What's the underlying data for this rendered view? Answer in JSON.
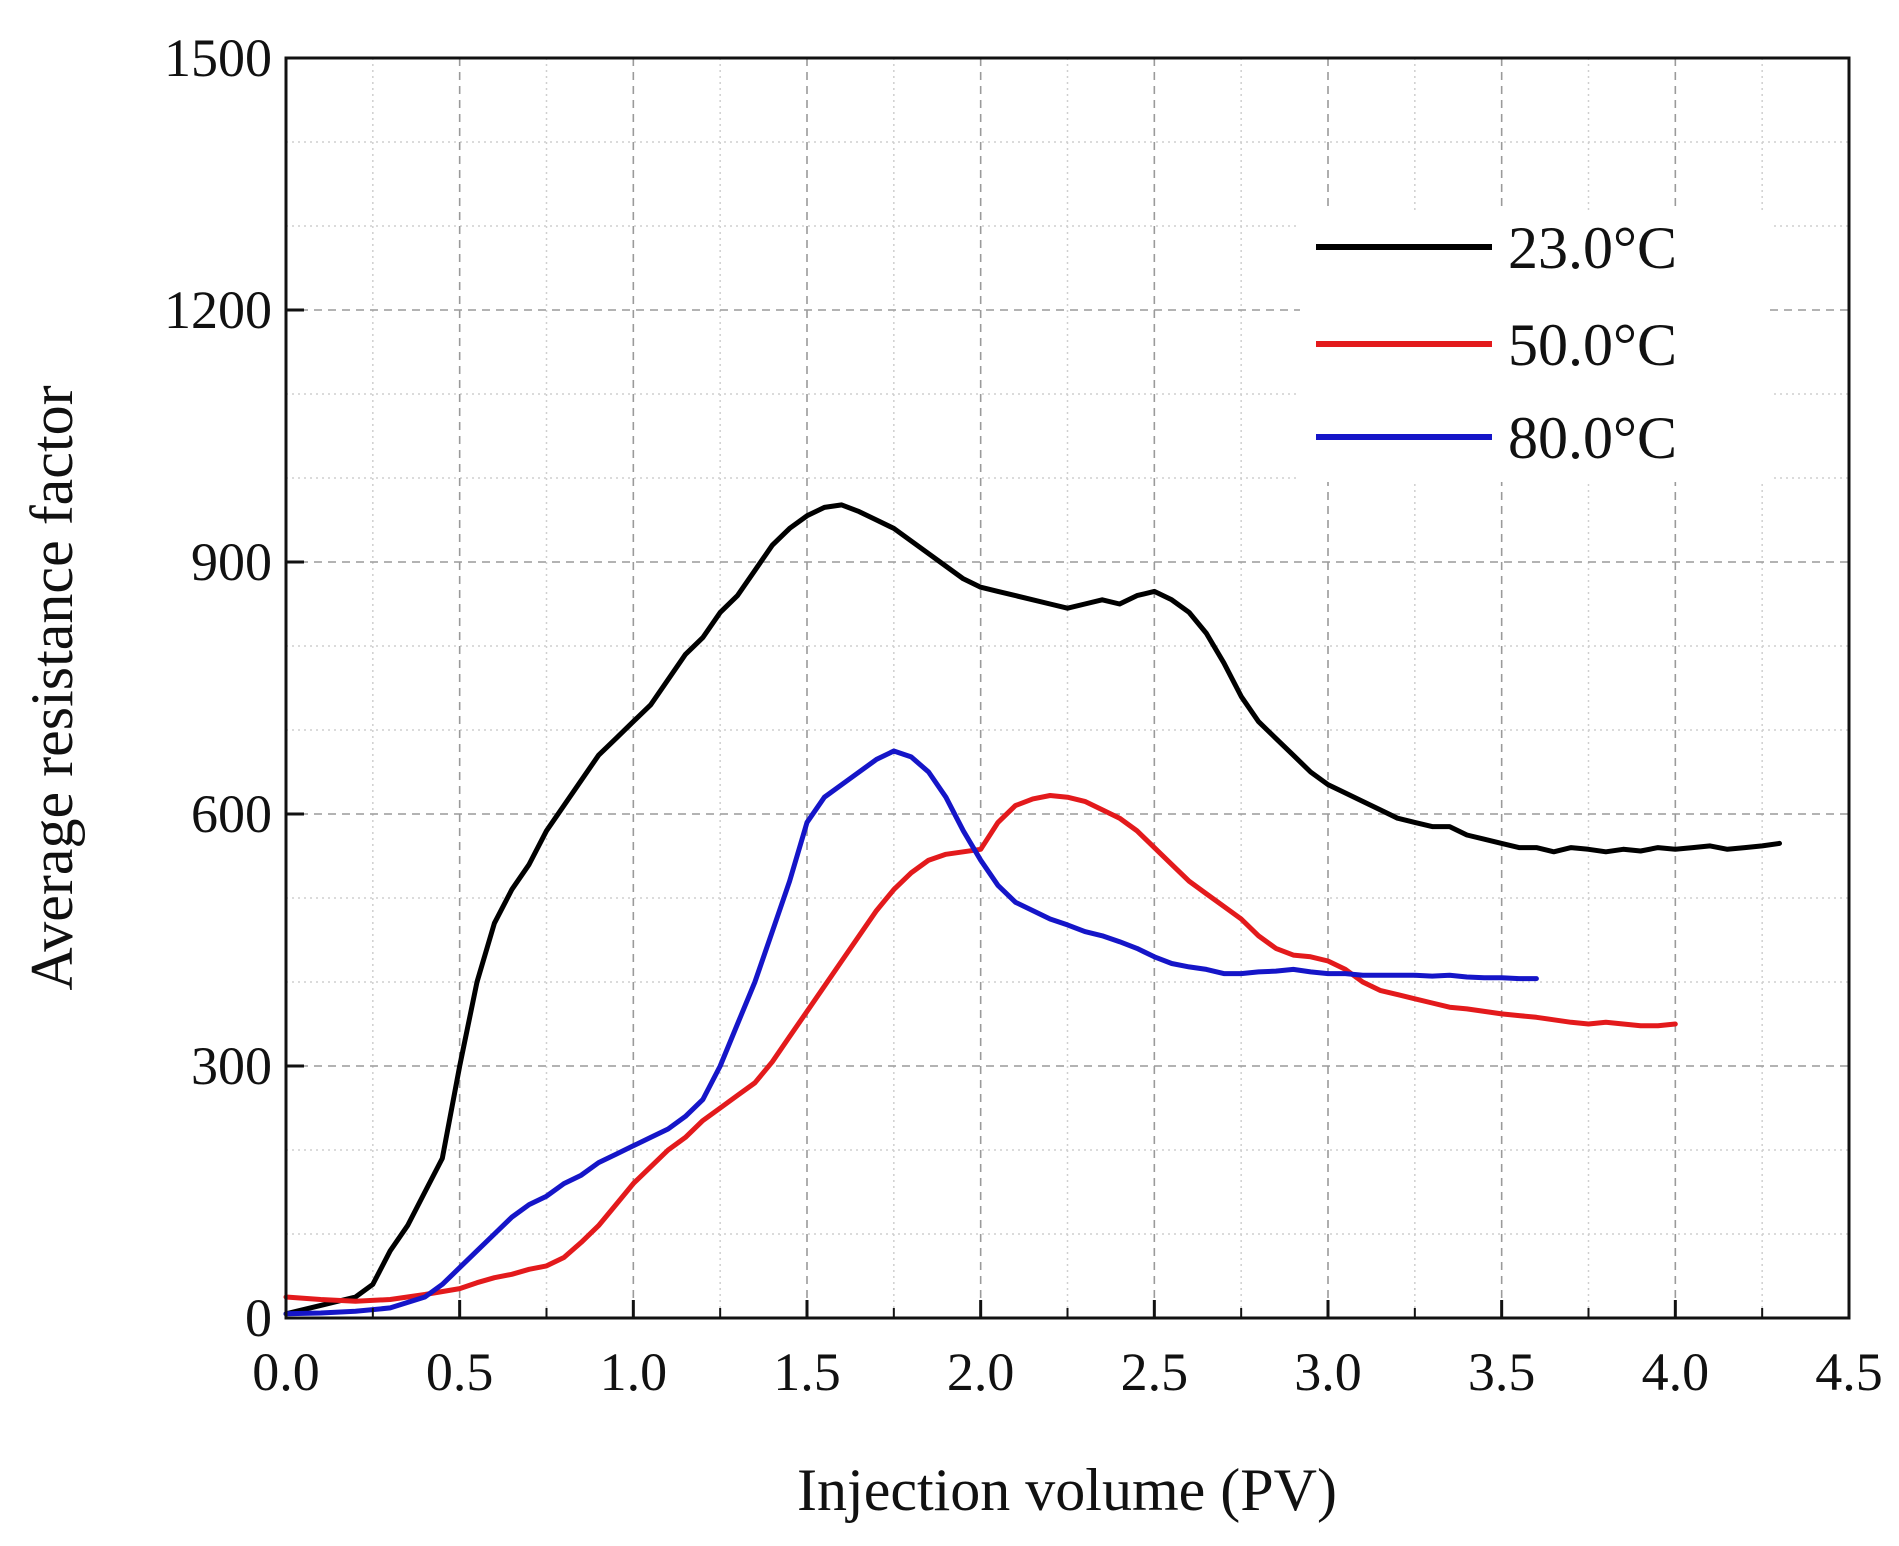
{
  "chart_data": {
    "type": "line",
    "title": "",
    "xlabel": "Injection volume (PV)",
    "ylabel": "Average resistance factor",
    "xlim": [
      0,
      4.5
    ],
    "ylim": [
      0,
      1500
    ],
    "xticks": [
      0.0,
      0.5,
      1.0,
      1.5,
      2.0,
      2.5,
      3.0,
      3.5,
      4.0,
      4.5
    ],
    "xtick_labels": [
      "0.0",
      "0.5",
      "1.0",
      "1.5",
      "2.0",
      "2.5",
      "3.0",
      "3.5",
      "4.0",
      "4.5"
    ],
    "yticks": [
      0,
      300,
      600,
      900,
      1200,
      1500
    ],
    "ytick_labels": [
      "0",
      "300",
      "600",
      "900",
      "1200",
      "1500"
    ],
    "minor_x_step": 0.25,
    "minor_y_step": 100,
    "grid": true,
    "legend_position": "top-right",
    "series": [
      {
        "name": "23.0°C",
        "color": "#000000",
        "x": [
          0.0,
          0.1,
          0.2,
          0.25,
          0.3,
          0.35,
          0.4,
          0.45,
          0.5,
          0.55,
          0.6,
          0.65,
          0.7,
          0.75,
          0.8,
          0.85,
          0.9,
          0.95,
          1.0,
          1.05,
          1.1,
          1.15,
          1.2,
          1.25,
          1.3,
          1.35,
          1.4,
          1.45,
          1.5,
          1.55,
          1.6,
          1.65,
          1.7,
          1.75,
          1.8,
          1.85,
          1.9,
          1.95,
          2.0,
          2.05,
          2.1,
          2.15,
          2.2,
          2.25,
          2.3,
          2.35,
          2.4,
          2.45,
          2.5,
          2.55,
          2.6,
          2.65,
          2.7,
          2.75,
          2.8,
          2.85,
          2.9,
          2.95,
          3.0,
          3.05,
          3.1,
          3.15,
          3.2,
          3.25,
          3.3,
          3.35,
          3.4,
          3.45,
          3.5,
          3.55,
          3.6,
          3.65,
          3.7,
          3.75,
          3.8,
          3.85,
          3.9,
          3.95,
          4.0,
          4.05,
          4.1,
          4.15,
          4.2,
          4.25,
          4.3
        ],
        "y": [
          5,
          15,
          25,
          40,
          80,
          110,
          150,
          190,
          300,
          400,
          470,
          510,
          540,
          580,
          610,
          640,
          670,
          690,
          710,
          730,
          760,
          790,
          810,
          840,
          860,
          890,
          920,
          940,
          955,
          965,
          968,
          960,
          950,
          940,
          925,
          910,
          895,
          880,
          870,
          865,
          860,
          855,
          850,
          845,
          850,
          855,
          850,
          860,
          865,
          855,
          840,
          815,
          780,
          740,
          710,
          690,
          670,
          650,
          635,
          625,
          615,
          605,
          595,
          590,
          585,
          585,
          575,
          570,
          565,
          560,
          560,
          555,
          560,
          558,
          555,
          558,
          556,
          560,
          558,
          560,
          562,
          558,
          560,
          562,
          565
        ]
      },
      {
        "name": "50.0°C",
        "color": "#e31a1c",
        "x": [
          0.0,
          0.1,
          0.2,
          0.3,
          0.4,
          0.5,
          0.55,
          0.6,
          0.65,
          0.7,
          0.75,
          0.8,
          0.85,
          0.9,
          0.95,
          1.0,
          1.05,
          1.1,
          1.15,
          1.2,
          1.25,
          1.3,
          1.35,
          1.4,
          1.45,
          1.5,
          1.55,
          1.6,
          1.65,
          1.7,
          1.75,
          1.8,
          1.85,
          1.9,
          1.95,
          2.0,
          2.05,
          2.1,
          2.15,
          2.2,
          2.25,
          2.3,
          2.35,
          2.4,
          2.45,
          2.5,
          2.55,
          2.6,
          2.65,
          2.7,
          2.75,
          2.8,
          2.85,
          2.9,
          2.95,
          3.0,
          3.05,
          3.1,
          3.15,
          3.2,
          3.25,
          3.3,
          3.35,
          3.4,
          3.45,
          3.5,
          3.55,
          3.6,
          3.65,
          3.7,
          3.75,
          3.8,
          3.85,
          3.9,
          3.95,
          4.0
        ],
        "y": [
          25,
          22,
          20,
          22,
          28,
          35,
          42,
          48,
          52,
          58,
          62,
          72,
          90,
          110,
          135,
          160,
          180,
          200,
          215,
          235,
          250,
          265,
          280,
          305,
          335,
          365,
          395,
          425,
          455,
          485,
          510,
          530,
          545,
          552,
          555,
          558,
          590,
          610,
          618,
          622,
          620,
          615,
          605,
          595,
          580,
          560,
          540,
          520,
          505,
          490,
          475,
          455,
          440,
          432,
          430,
          425,
          415,
          400,
          390,
          385,
          380,
          375,
          370,
          368,
          365,
          362,
          360,
          358,
          355,
          352,
          350,
          352,
          350,
          348,
          348,
          350
        ]
      },
      {
        "name": "80.0°C",
        "color": "#1515c8",
        "x": [
          0.0,
          0.1,
          0.2,
          0.3,
          0.4,
          0.45,
          0.5,
          0.55,
          0.6,
          0.65,
          0.7,
          0.75,
          0.8,
          0.85,
          0.9,
          0.95,
          1.0,
          1.05,
          1.1,
          1.15,
          1.2,
          1.25,
          1.3,
          1.35,
          1.4,
          1.45,
          1.5,
          1.55,
          1.6,
          1.65,
          1.7,
          1.75,
          1.8,
          1.85,
          1.9,
          1.95,
          2.0,
          2.05,
          2.1,
          2.15,
          2.2,
          2.25,
          2.3,
          2.35,
          2.4,
          2.45,
          2.5,
          2.55,
          2.6,
          2.65,
          2.7,
          2.75,
          2.8,
          2.85,
          2.9,
          2.95,
          3.0,
          3.05,
          3.1,
          3.15,
          3.2,
          3.25,
          3.3,
          3.35,
          3.4,
          3.45,
          3.5,
          3.55,
          3.6
        ],
        "y": [
          5,
          6,
          8,
          12,
          25,
          40,
          60,
          80,
          100,
          120,
          135,
          145,
          160,
          170,
          185,
          195,
          205,
          215,
          225,
          240,
          260,
          300,
          350,
          400,
          460,
          520,
          590,
          620,
          635,
          650,
          665,
          675,
          668,
          650,
          620,
          580,
          545,
          515,
          495,
          485,
          475,
          468,
          460,
          455,
          448,
          440,
          430,
          422,
          418,
          415,
          410,
          410,
          412,
          413,
          415,
          412,
          410,
          410,
          408,
          408,
          408,
          408,
          407,
          408,
          406,
          405,
          405,
          404,
          404
        ]
      }
    ]
  }
}
